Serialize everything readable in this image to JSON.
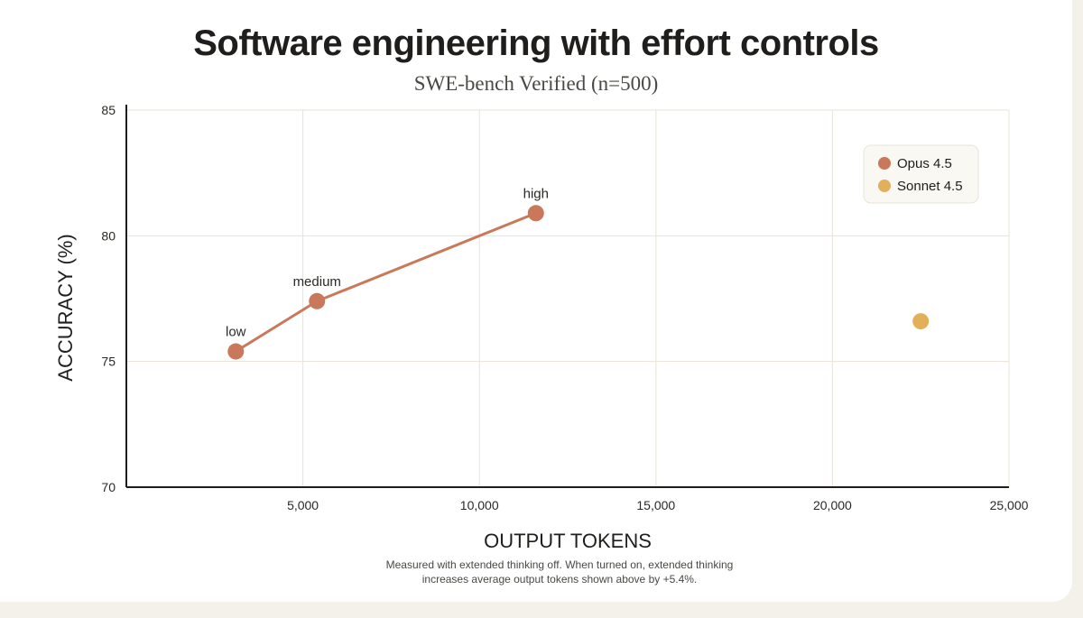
{
  "chart_data": {
    "type": "scatter",
    "title": "Software engineering with effort controls",
    "subtitle": "SWE-bench Verified (n=500)",
    "xlabel": "OUTPUT TOKENS",
    "ylabel": "ACCURACY (%)",
    "xlim": [
      0,
      25000
    ],
    "ylim": [
      70,
      85
    ],
    "xticks": [
      5000,
      10000,
      15000,
      20000,
      25000
    ],
    "xtick_labels": [
      "5,000",
      "10,000",
      "15,000",
      "20,000",
      "25,000"
    ],
    "yticks": [
      70,
      75,
      80,
      85
    ],
    "ytick_labels": [
      "70",
      "75",
      "80",
      "85"
    ],
    "grid": true,
    "legend_position": "top-right",
    "series": [
      {
        "name": "Opus 4.5",
        "color": "#c9785a",
        "connected": true,
        "points": [
          {
            "x": 3100,
            "y": 75.4,
            "label": "low"
          },
          {
            "x": 5400,
            "y": 77.4,
            "label": "medium"
          },
          {
            "x": 11600,
            "y": 80.9,
            "label": "high"
          }
        ]
      },
      {
        "name": "Sonnet 4.5",
        "color": "#e2b05a",
        "connected": false,
        "points": [
          {
            "x": 22500,
            "y": 76.6,
            "label": ""
          }
        ]
      }
    ],
    "footnote": [
      "Measured with extended thinking off. When turned on, extended thinking",
      "increases average output tokens shown above by +5.4%."
    ]
  }
}
